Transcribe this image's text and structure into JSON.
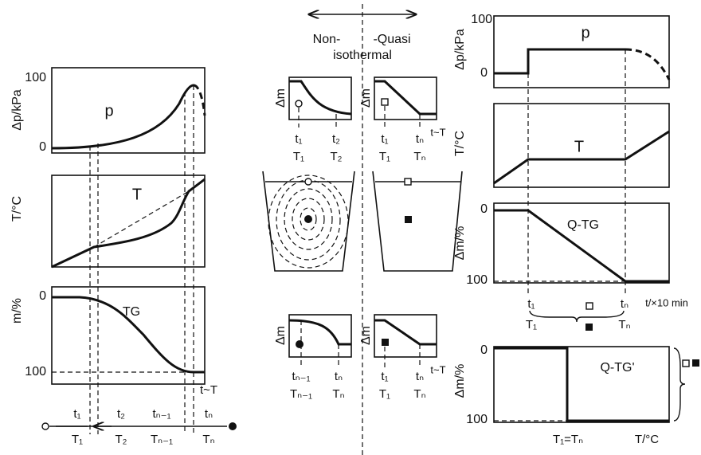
{
  "left": {
    "pressure": {
      "axis_label": "Δp/kPa",
      "ticks": [
        "100",
        "0"
      ],
      "label": "p"
    },
    "temperature": {
      "axis_label": "T/°C",
      "label": "T"
    },
    "mass": {
      "axis_label": "m/%",
      "ticks": [
        "0",
        "100"
      ],
      "label": "TG",
      "x_label": "t~T"
    },
    "intervals": [
      {
        "t": "t₁",
        "T": "T₁"
      },
      {
        "t": "t₂",
        "T": "T₂"
      },
      {
        "t": "tₙ₋₁",
        "T": "Tₙ₋₁"
      },
      {
        "t": "tₙ",
        "T": "Tₙ"
      }
    ]
  },
  "middle": {
    "heading": {
      "left": "Non-",
      "right": "-Quasi",
      "bottom": "isothermal"
    },
    "panels": [
      {
        "axis_label": "Δm",
        "labels": [
          {
            "t": "t₁",
            "T": "T₁"
          },
          {
            "t": "t₂",
            "T": "T₂"
          }
        ]
      },
      {
        "axis_label": "Δm",
        "labels": [
          {
            "t": "t₁",
            "T": "T₁"
          },
          {
            "t": "tₙ",
            "T": "Tₙ"
          }
        ],
        "x_label": "t~T"
      },
      {
        "axis_label": "Δm",
        "labels": [
          {
            "t": "tₙ₋₁",
            "T": "Tₙ₋₁"
          },
          {
            "t": "tₙ",
            "T": "Tₙ"
          }
        ]
      },
      {
        "axis_label": "Δm",
        "labels": [
          {
            "t": "t₁",
            "T": "T₁"
          },
          {
            "t": "tₙ",
            "T": "Tₙ"
          }
        ],
        "x_label": "t~T"
      }
    ]
  },
  "right": {
    "pressure": {
      "axis_label": "Δp/kPa",
      "ticks": [
        "100",
        "0"
      ],
      "label": "p"
    },
    "temperature": {
      "axis_label": "T/°C",
      "label": "T"
    },
    "qtg": {
      "axis_label": "Δm/%",
      "ticks": [
        "0",
        "100"
      ],
      "label": "Q-TG",
      "labels": [
        {
          "t": "t₁",
          "T": "T₁"
        },
        {
          "t": "tₙ",
          "T": "Tₙ"
        }
      ],
      "x_label": "t/×10 min"
    },
    "qtg2": {
      "axis_label": "Δm/%",
      "ticks": [
        "0",
        "100"
      ],
      "label": "Q-TG'",
      "x_labels": [
        "T₁=Tₙ",
        "T/°C"
      ]
    }
  }
}
